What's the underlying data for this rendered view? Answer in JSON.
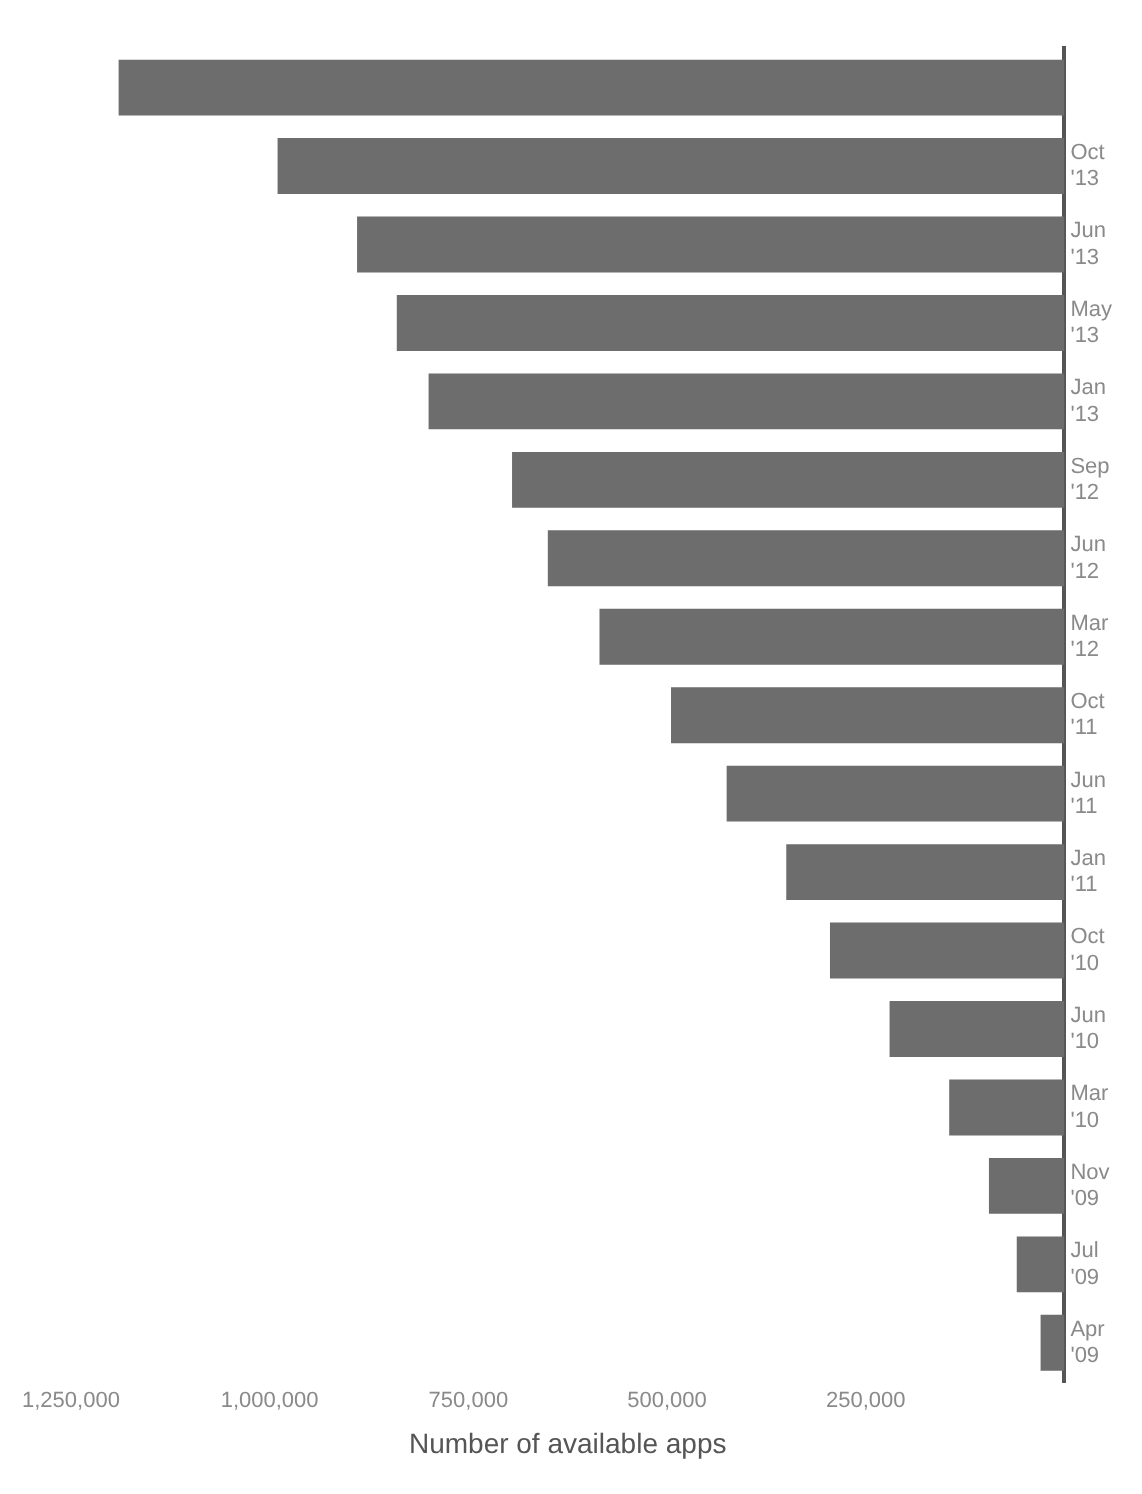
{
  "chart_data": {
    "type": "bar",
    "orientation": "horizontal",
    "xlabel": "Number of available apps",
    "categories": [
      null,
      "Oct '13",
      "Jun '13",
      "May '13",
      "Jan '13",
      "Sep '12",
      "Jun '12",
      "Mar '12",
      "Oct '11",
      "Jun '11",
      "Jan '11",
      "Oct '10",
      "Jun '10",
      "Mar '10",
      "Nov '09",
      "Jul '09",
      "Apr '09"
    ],
    "values": [
      1190000,
      990000,
      890000,
      840000,
      800000,
      695000,
      650000,
      585000,
      495000,
      425000,
      350000,
      295000,
      220000,
      145000,
      95000,
      60000,
      30000
    ],
    "color": "#6d6d6d",
    "xlim": [
      1250000,
      0
    ],
    "xticks": [
      {
        "value": 1250000,
        "label": "1,250,000"
      },
      {
        "value": 1000000,
        "label": "1,000,000"
      },
      {
        "value": 750000,
        "label": "750,000"
      },
      {
        "value": 500000,
        "label": "500,000"
      },
      {
        "value": 250000,
        "label": "250,000"
      }
    ],
    "grid": false,
    "legend": false
  }
}
